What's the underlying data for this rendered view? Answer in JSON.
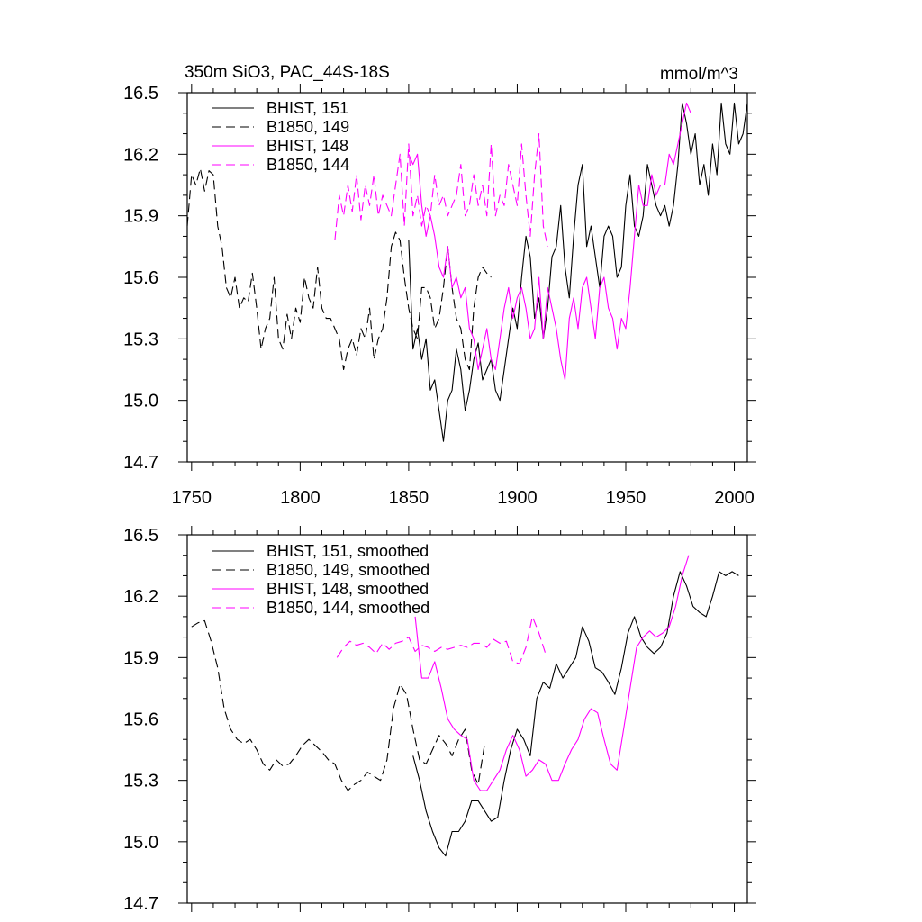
{
  "colors": {
    "black": "#000000",
    "magenta": "#ff00ff"
  },
  "chart_data": [
    {
      "type": "line",
      "title": "350m SiO3, PAC_44S-18S",
      "units": "mmol/m^3",
      "xlim": [
        1748,
        2006
      ],
      "ylim": [
        14.7,
        16.5
      ],
      "xticks": [
        1750,
        1800,
        1850,
        1900,
        1950,
        2000
      ],
      "yticks": [
        14.7,
        15.0,
        15.3,
        15.6,
        15.9,
        16.2,
        16.5
      ],
      "ytick_labels": [
        "14.7",
        "15.0",
        "15.3",
        "15.6",
        "15.9",
        "16.2",
        "16.5"
      ],
      "xtick_labels": [
        "1750",
        "1800",
        "1850",
        "1900",
        "1950",
        "2000"
      ],
      "legend_position": "top-left",
      "series": [
        {
          "name": "BHIST, 151",
          "color": "black",
          "dash": "solid",
          "x": [
            1850,
            1852,
            1854,
            1856,
            1858,
            1860,
            1862,
            1864,
            1866,
            1868,
            1870,
            1872,
            1874,
            1876,
            1878,
            1880,
            1882,
            1884,
            1886,
            1888,
            1890,
            1892,
            1894,
            1896,
            1898,
            1900,
            1902,
            1904,
            1906,
            1908,
            1910,
            1912,
            1914,
            1916,
            1918,
            1920,
            1922,
            1924,
            1926,
            1928,
            1930,
            1932,
            1934,
            1936,
            1938,
            1940,
            1942,
            1944,
            1946,
            1948,
            1950,
            1952,
            1954,
            1956,
            1958,
            1960,
            1962,
            1964,
            1966,
            1968,
            1970,
            1972,
            1974,
            1976,
            1978,
            1980,
            1982,
            1984,
            1986,
            1988,
            1990,
            1992,
            1994,
            1996,
            1998,
            2000,
            2002,
            2004,
            2006
          ],
          "y": [
            15.78,
            15.25,
            15.35,
            15.2,
            15.3,
            15.05,
            15.1,
            14.95,
            14.8,
            15.0,
            15.05,
            15.25,
            15.15,
            14.95,
            15.05,
            15.2,
            15.28,
            15.1,
            15.15,
            15.2,
            15.05,
            15.0,
            15.15,
            15.3,
            15.45,
            15.35,
            15.6,
            15.8,
            15.7,
            15.4,
            15.5,
            15.3,
            15.45,
            15.7,
            15.75,
            15.95,
            15.65,
            15.5,
            15.8,
            16.05,
            16.15,
            15.75,
            15.85,
            15.7,
            15.55,
            15.8,
            15.85,
            15.8,
            15.6,
            15.65,
            15.95,
            16.1,
            15.85,
            15.8,
            15.9,
            16.15,
            16.05,
            15.95,
            15.9,
            15.95,
            15.85,
            15.95,
            16.15,
            16.45,
            16.35,
            16.2,
            16.3,
            16.05,
            16.15,
            16.0,
            16.25,
            16.1,
            16.45,
            16.25,
            16.2,
            16.45,
            16.25,
            16.3,
            16.45
          ]
        },
        {
          "name": "B1850, 149",
          "color": "black",
          "dash": "dashed",
          "x": [
            1748,
            1750,
            1752,
            1754,
            1756,
            1758,
            1760,
            1762,
            1764,
            1766,
            1768,
            1770,
            1772,
            1774,
            1776,
            1778,
            1780,
            1782,
            1784,
            1786,
            1788,
            1790,
            1792,
            1794,
            1796,
            1798,
            1800,
            1802,
            1804,
            1806,
            1808,
            1810,
            1812,
            1814,
            1816,
            1818,
            1820,
            1822,
            1824,
            1826,
            1828,
            1830,
            1832,
            1834,
            1836,
            1838,
            1840,
            1842,
            1844,
            1846,
            1848,
            1850,
            1852,
            1854,
            1856,
            1858,
            1860,
            1862,
            1864,
            1866,
            1868,
            1870,
            1872,
            1874,
            1876,
            1878,
            1880,
            1882,
            1884,
            1886,
            1888
          ],
          "y": [
            15.85,
            16.1,
            16.05,
            16.13,
            16.02,
            16.12,
            16.1,
            15.85,
            15.75,
            15.55,
            15.5,
            15.6,
            15.45,
            15.5,
            15.48,
            15.62,
            15.45,
            15.25,
            15.35,
            15.4,
            15.6,
            15.3,
            15.25,
            15.42,
            15.3,
            15.45,
            15.38,
            15.6,
            15.5,
            15.45,
            15.65,
            15.45,
            15.4,
            15.4,
            15.35,
            15.3,
            15.15,
            15.25,
            15.3,
            15.22,
            15.35,
            15.3,
            15.45,
            15.2,
            15.3,
            15.35,
            15.5,
            15.75,
            15.82,
            15.78,
            15.6,
            15.45,
            15.35,
            15.3,
            15.55,
            15.55,
            15.5,
            15.35,
            15.4,
            15.55,
            15.75,
            15.55,
            15.4,
            15.35,
            15.2,
            15.15,
            15.45,
            15.6,
            15.65,
            15.62,
            15.6
          ]
        },
        {
          "name": "BHIST, 148",
          "color": "magenta",
          "dash": "solid",
          "x": [
            1850,
            1852,
            1854,
            1856,
            1858,
            1860,
            1862,
            1864,
            1866,
            1868,
            1870,
            1872,
            1874,
            1876,
            1878,
            1880,
            1882,
            1884,
            1886,
            1888,
            1890,
            1892,
            1894,
            1896,
            1898,
            1900,
            1902,
            1904,
            1906,
            1908,
            1910,
            1912,
            1914,
            1916,
            1918,
            1920,
            1922,
            1924,
            1926,
            1928,
            1930,
            1932,
            1934,
            1936,
            1938,
            1940,
            1942,
            1944,
            1946,
            1948,
            1950,
            1952,
            1954,
            1956,
            1958,
            1960,
            1962,
            1964,
            1966,
            1968,
            1970,
            1972,
            1974,
            1976,
            1978,
            1980
          ],
          "y": [
            16.2,
            16.15,
            16.2,
            15.95,
            15.8,
            15.9,
            15.8,
            15.65,
            15.6,
            15.75,
            15.55,
            15.6,
            15.5,
            15.55,
            15.35,
            15.3,
            15.15,
            15.25,
            15.35,
            15.2,
            15.15,
            15.3,
            15.45,
            15.55,
            15.4,
            15.5,
            15.55,
            15.45,
            15.3,
            15.35,
            15.6,
            15.3,
            15.55,
            15.45,
            15.35,
            15.2,
            15.1,
            15.4,
            15.5,
            15.35,
            15.55,
            15.6,
            15.45,
            15.3,
            15.55,
            15.6,
            15.45,
            15.4,
            15.25,
            15.4,
            15.35,
            15.55,
            15.8,
            16.05,
            15.95,
            15.95,
            16.1,
            16.0,
            16.05,
            16.05,
            16.2,
            16.15,
            16.25,
            16.35,
            16.45,
            16.4
          ]
        },
        {
          "name": "B1850, 144",
          "color": "magenta",
          "dash": "dashed",
          "x": [
            1816,
            1818,
            1820,
            1822,
            1824,
            1826,
            1828,
            1830,
            1832,
            1834,
            1836,
            1838,
            1840,
            1842,
            1844,
            1846,
            1848,
            1850,
            1852,
            1854,
            1856,
            1858,
            1860,
            1862,
            1864,
            1866,
            1868,
            1870,
            1872,
            1874,
            1876,
            1878,
            1880,
            1882,
            1884,
            1886,
            1888,
            1890,
            1892,
            1894,
            1896,
            1898,
            1900,
            1902,
            1904,
            1906,
            1908,
            1910,
            1912,
            1914
          ],
          "y": [
            15.78,
            16.0,
            15.9,
            16.05,
            15.92,
            16.1,
            15.88,
            16.05,
            15.95,
            16.1,
            15.9,
            16.0,
            15.95,
            15.9,
            16.05,
            16.2,
            15.85,
            16.25,
            15.9,
            16.0,
            15.85,
            15.95,
            15.9,
            16.1,
            15.95,
            16.0,
            15.9,
            15.95,
            16.0,
            16.15,
            15.9,
            15.95,
            16.1,
            15.95,
            16.05,
            15.9,
            16.25,
            15.9,
            16.0,
            15.95,
            16.15,
            16.05,
            15.95,
            16.25,
            16.0,
            15.8,
            16.1,
            16.3,
            15.85,
            15.75
          ]
        }
      ]
    },
    {
      "type": "line",
      "xlim": [
        1748,
        2006
      ],
      "ylim": [
        14.7,
        16.5
      ],
      "xticks": [
        1750,
        1800,
        1850,
        1900,
        1950,
        2000
      ],
      "yticks": [
        14.7,
        15.0,
        15.3,
        15.6,
        15.9,
        16.2,
        16.5
      ],
      "ytick_labels": [
        "14.7",
        "15.0",
        "15.3",
        "15.6",
        "15.9",
        "16.2",
        "16.5"
      ],
      "legend_position": "top-left",
      "series": [
        {
          "name": "BHIST, 151, smoothed",
          "color": "black",
          "dash": "solid",
          "x": [
            1852,
            1855,
            1858,
            1861,
            1864,
            1867,
            1870,
            1873,
            1876,
            1879,
            1882,
            1885,
            1888,
            1891,
            1894,
            1897,
            1900,
            1903,
            1906,
            1909,
            1912,
            1915,
            1918,
            1921,
            1924,
            1927,
            1930,
            1933,
            1936,
            1939,
            1942,
            1945,
            1948,
            1951,
            1954,
            1957,
            1960,
            1963,
            1966,
            1969,
            1972,
            1975,
            1978,
            1981,
            1984,
            1987,
            1990,
            1993,
            1996,
            1999,
            2002
          ],
          "y": [
            15.42,
            15.3,
            15.15,
            15.05,
            14.97,
            14.93,
            15.05,
            15.05,
            15.1,
            15.2,
            15.2,
            15.15,
            15.1,
            15.12,
            15.3,
            15.45,
            15.55,
            15.5,
            15.42,
            15.7,
            15.78,
            15.75,
            15.87,
            15.8,
            15.85,
            15.9,
            16.05,
            15.98,
            15.85,
            15.83,
            15.78,
            15.72,
            15.85,
            16.02,
            16.1,
            16.0,
            15.95,
            15.92,
            15.95,
            16.02,
            16.2,
            16.32,
            16.25,
            16.15,
            16.12,
            16.1,
            16.2,
            16.32,
            16.3,
            16.32,
            16.3
          ]
        },
        {
          "name": "B1850, 149, smoothed",
          "color": "black",
          "dash": "dashed",
          "x": [
            1750,
            1753,
            1756,
            1759,
            1762,
            1765,
            1768,
            1771,
            1774,
            1777,
            1780,
            1783,
            1786,
            1789,
            1792,
            1795,
            1798,
            1801,
            1804,
            1807,
            1810,
            1813,
            1816,
            1819,
            1822,
            1825,
            1828,
            1831,
            1834,
            1837,
            1840,
            1843,
            1846,
            1849,
            1852,
            1855,
            1858,
            1861,
            1864,
            1867,
            1870,
            1873,
            1876,
            1879,
            1882,
            1885
          ],
          "y": [
            16.05,
            16.07,
            16.08,
            15.98,
            15.85,
            15.65,
            15.55,
            15.5,
            15.48,
            15.5,
            15.45,
            15.38,
            15.35,
            15.4,
            15.37,
            15.38,
            15.42,
            15.47,
            15.5,
            15.47,
            15.44,
            15.4,
            15.38,
            15.3,
            15.25,
            15.28,
            15.3,
            15.34,
            15.32,
            15.3,
            15.4,
            15.65,
            15.77,
            15.72,
            15.55,
            15.4,
            15.38,
            15.45,
            15.52,
            15.48,
            15.42,
            15.5,
            15.55,
            15.35,
            15.28,
            15.48
          ]
        },
        {
          "name": "BHIST, 148, smoothed",
          "color": "magenta",
          "dash": "solid",
          "x": [
            1853,
            1856,
            1859,
            1862,
            1865,
            1868,
            1871,
            1874,
            1877,
            1880,
            1883,
            1886,
            1889,
            1892,
            1895,
            1898,
            1901,
            1904,
            1907,
            1910,
            1913,
            1916,
            1919,
            1922,
            1925,
            1928,
            1931,
            1934,
            1937,
            1940,
            1943,
            1946,
            1949,
            1952,
            1955,
            1958,
            1961,
            1964,
            1967,
            1970,
            1973,
            1976,
            1979
          ],
          "y": [
            16.1,
            15.8,
            15.8,
            15.88,
            15.75,
            15.6,
            15.55,
            15.52,
            15.5,
            15.3,
            15.25,
            15.25,
            15.3,
            15.35,
            15.45,
            15.52,
            15.45,
            15.32,
            15.35,
            15.4,
            15.38,
            15.3,
            15.3,
            15.38,
            15.45,
            15.5,
            15.6,
            15.65,
            15.63,
            15.5,
            15.38,
            15.35,
            15.55,
            15.75,
            15.95,
            16.0,
            16.03,
            16.0,
            16.02,
            16.05,
            16.15,
            16.3,
            16.4
          ]
        },
        {
          "name": "B1850, 144, smoothed",
          "color": "magenta",
          "dash": "dashed",
          "x": [
            1817,
            1820,
            1823,
            1826,
            1829,
            1832,
            1835,
            1838,
            1841,
            1844,
            1847,
            1850,
            1853,
            1856,
            1859,
            1862,
            1865,
            1868,
            1871,
            1874,
            1877,
            1880,
            1883,
            1886,
            1889,
            1892,
            1895,
            1898,
            1901,
            1904,
            1907,
            1910,
            1913
          ],
          "y": [
            15.9,
            15.95,
            15.98,
            15.96,
            15.97,
            15.95,
            15.92,
            15.97,
            15.94,
            15.97,
            15.98,
            16.0,
            15.93,
            15.96,
            15.95,
            15.93,
            15.95,
            15.94,
            15.95,
            15.96,
            15.95,
            15.97,
            15.97,
            15.95,
            15.99,
            15.97,
            15.98,
            15.88,
            15.87,
            15.95,
            16.1,
            16.02,
            15.92
          ]
        }
      ]
    }
  ]
}
